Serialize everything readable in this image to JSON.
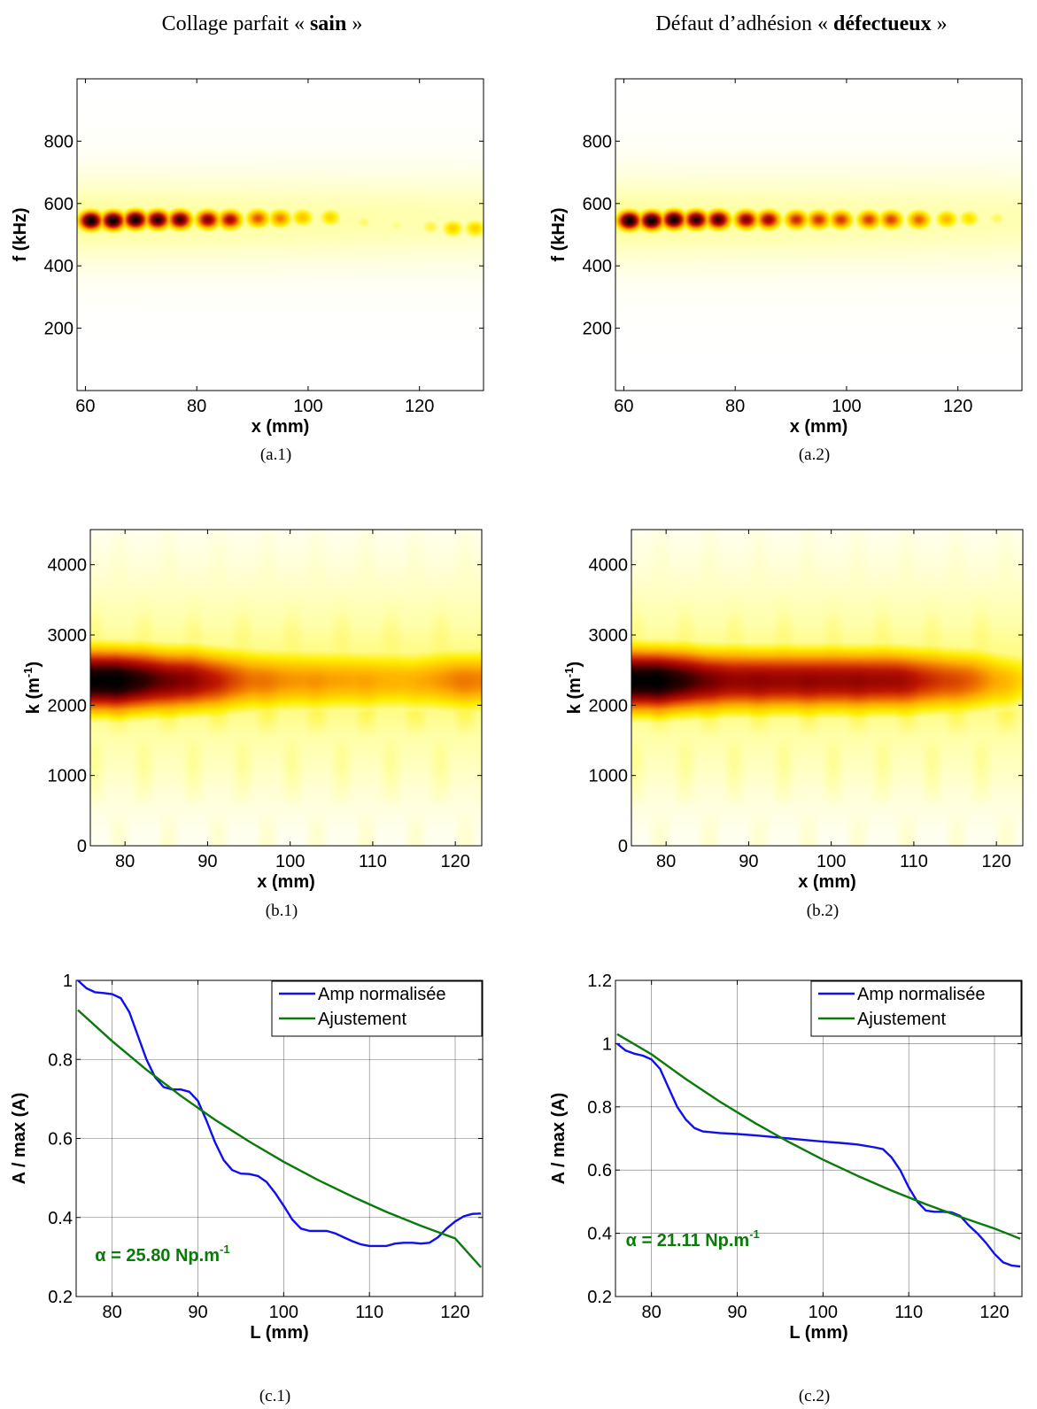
{
  "figure": {
    "column_titles": [
      {
        "prefix": "Collage parfait « ",
        "bold": "sain",
        "suffix": " »"
      },
      {
        "prefix": "Défaut d’adhésion « ",
        "bold": "défectueux",
        "suffix": " »"
      }
    ]
  },
  "colors": {
    "heat": [
      "#ffffff",
      "#ffffaa",
      "#ffee00",
      "#ffb000",
      "#e86000",
      "#c01800",
      "#8a0000",
      "#300000",
      "#000000"
    ],
    "amp_line": "#1010ee",
    "fit_line": "#0a7a0a",
    "alpha_text": "#0a7a0a"
  },
  "chart_data": [
    {
      "id": "a.1",
      "caption": "(a.1)",
      "type": "heatmap",
      "xlabel": "x (mm)",
      "ylabel": "f (kHz)",
      "xlim": [
        58.5,
        131.5
      ],
      "ylim": [
        0,
        1000
      ],
      "xticks": [
        "60",
        "80",
        "100",
        "120"
      ],
      "xtick_values": [
        60,
        80,
        100,
        120
      ],
      "yticks": [
        "200",
        "400",
        "600",
        "800"
      ],
      "ytick_values": [
        200,
        400,
        600,
        800
      ],
      "band": {
        "center": 548,
        "sigma": 30,
        "halo_low": 390,
        "halo_high": 690
      },
      "spots": [
        {
          "x": 61,
          "y": 545,
          "intensity": 0.98
        },
        {
          "x": 65,
          "y": 545,
          "intensity": 0.98
        },
        {
          "x": 69,
          "y": 548,
          "intensity": 0.96
        },
        {
          "x": 73,
          "y": 548,
          "intensity": 0.9
        },
        {
          "x": 77,
          "y": 548,
          "intensity": 0.86
        },
        {
          "x": 82,
          "y": 548,
          "intensity": 0.76
        },
        {
          "x": 86,
          "y": 548,
          "intensity": 0.7
        },
        {
          "x": 91,
          "y": 552,
          "intensity": 0.52
        },
        {
          "x": 95,
          "y": 552,
          "intensity": 0.45
        },
        {
          "x": 99,
          "y": 555,
          "intensity": 0.34
        },
        {
          "x": 104,
          "y": 555,
          "intensity": 0.3
        },
        {
          "x": 110,
          "y": 540,
          "intensity": 0.17
        },
        {
          "x": 116,
          "y": 530,
          "intensity": 0.15
        },
        {
          "x": 122,
          "y": 525,
          "intensity": 0.2
        },
        {
          "x": 126,
          "y": 520,
          "intensity": 0.31
        },
        {
          "x": 130,
          "y": 520,
          "intensity": 0.31
        }
      ]
    },
    {
      "id": "a.2",
      "caption": "(a.2)",
      "type": "heatmap",
      "xlabel": "x (mm)",
      "ylabel": "f (kHz)",
      "xlim": [
        58.5,
        131.5
      ],
      "ylim": [
        0,
        1000
      ],
      "xticks": [
        "60",
        "80",
        "100",
        "120"
      ],
      "xtick_values": [
        60,
        80,
        100,
        120
      ],
      "yticks": [
        "200",
        "400",
        "600",
        "800"
      ],
      "ytick_values": [
        200,
        400,
        600,
        800
      ],
      "band": {
        "center": 548,
        "sigma": 30,
        "halo_low": 390,
        "halo_high": 700
      },
      "spots": [
        {
          "x": 61,
          "y": 545,
          "intensity": 0.98
        },
        {
          "x": 65,
          "y": 545,
          "intensity": 0.98
        },
        {
          "x": 69,
          "y": 548,
          "intensity": 0.96
        },
        {
          "x": 73,
          "y": 548,
          "intensity": 0.9
        },
        {
          "x": 77,
          "y": 548,
          "intensity": 0.86
        },
        {
          "x": 82,
          "y": 548,
          "intensity": 0.76
        },
        {
          "x": 86,
          "y": 548,
          "intensity": 0.72
        },
        {
          "x": 91,
          "y": 548,
          "intensity": 0.6
        },
        {
          "x": 95,
          "y": 548,
          "intensity": 0.58
        },
        {
          "x": 99,
          "y": 548,
          "intensity": 0.57
        },
        {
          "x": 104,
          "y": 548,
          "intensity": 0.56
        },
        {
          "x": 108,
          "y": 548,
          "intensity": 0.55
        },
        {
          "x": 113,
          "y": 548,
          "intensity": 0.5
        },
        {
          "x": 118,
          "y": 550,
          "intensity": 0.36
        },
        {
          "x": 122,
          "y": 552,
          "intensity": 0.28
        },
        {
          "x": 127,
          "y": 552,
          "intensity": 0.18
        },
        {
          "x": 131,
          "y": 552,
          "intensity": 0.12
        }
      ]
    },
    {
      "id": "b.1",
      "caption": "(b.1)",
      "type": "heatmap",
      "xlabel": "x (mm)",
      "ylabel": "k (m",
      "ylabel_sup": "-1",
      "ylabel_end": ")",
      "xlim": [
        75.8,
        123.2
      ],
      "ylim": [
        0,
        4500
      ],
      "xticks": [
        "80",
        "90",
        "100",
        "110",
        "120"
      ],
      "xtick_values": [
        80,
        90,
        100,
        110,
        120
      ],
      "yticks": [
        "0",
        "1000",
        "2000",
        "3000",
        "4000"
      ],
      "ytick_values": [
        0,
        1000,
        2000,
        3000,
        4000
      ],
      "band": {
        "center": 2350,
        "sigma": 430,
        "halo_low": 600,
        "halo_high": 4300
      },
      "profile": [
        {
          "x": 76,
          "v": 1.0
        },
        {
          "x": 79,
          "v": 1.0
        },
        {
          "x": 82,
          "v": 0.9
        },
        {
          "x": 85,
          "v": 0.78
        },
        {
          "x": 88,
          "v": 0.75
        },
        {
          "x": 91,
          "v": 0.62
        },
        {
          "x": 95,
          "v": 0.48
        },
        {
          "x": 100,
          "v": 0.42
        },
        {
          "x": 105,
          "v": 0.4
        },
        {
          "x": 110,
          "v": 0.38
        },
        {
          "x": 115,
          "v": 0.36
        },
        {
          "x": 120,
          "v": 0.45
        },
        {
          "x": 123,
          "v": 0.45
        }
      ]
    },
    {
      "id": "b.2",
      "caption": "(b.2)",
      "type": "heatmap",
      "xlabel": "x (mm)",
      "ylabel": "k (m",
      "ylabel_sup": "-1",
      "ylabel_end": ")",
      "xlim": [
        75.8,
        123.2
      ],
      "ylim": [
        0,
        4500
      ],
      "xticks": [
        "80",
        "90",
        "100",
        "110",
        "120"
      ],
      "xtick_values": [
        80,
        90,
        100,
        110,
        120
      ],
      "yticks": [
        "0",
        "1000",
        "2000",
        "3000",
        "4000"
      ],
      "ytick_values": [
        0,
        1000,
        2000,
        3000,
        4000
      ],
      "band": {
        "center": 2350,
        "sigma": 430,
        "halo_low": 600,
        "halo_high": 4300
      },
      "profile": [
        {
          "x": 76,
          "v": 1.0
        },
        {
          "x": 79,
          "v": 1.0
        },
        {
          "x": 82,
          "v": 0.9
        },
        {
          "x": 85,
          "v": 0.78
        },
        {
          "x": 88,
          "v": 0.73
        },
        {
          "x": 95,
          "v": 0.72
        },
        {
          "x": 100,
          "v": 0.72
        },
        {
          "x": 105,
          "v": 0.71
        },
        {
          "x": 108,
          "v": 0.7
        },
        {
          "x": 111,
          "v": 0.62
        },
        {
          "x": 114,
          "v": 0.55
        },
        {
          "x": 117,
          "v": 0.5
        },
        {
          "x": 120,
          "v": 0.38
        },
        {
          "x": 123,
          "v": 0.3
        }
      ]
    },
    {
      "id": "c.1",
      "caption": "(c.1)",
      "type": "line",
      "xlabel": "L (mm)",
      "ylabel": "A / max (A)",
      "xlim": [
        75.8,
        123.2
      ],
      "ylim": [
        0.2,
        1.0
      ],
      "xticks": [
        "80",
        "90",
        "100",
        "110",
        "120"
      ],
      "xtick_values": [
        80,
        90,
        100,
        110,
        120
      ],
      "yticks": [
        "0.2",
        "0.4",
        "0.6",
        "0.8",
        "1"
      ],
      "ytick_values": [
        0.2,
        0.4,
        0.6,
        0.8,
        1.0
      ],
      "grid": true,
      "legend": "top-right",
      "annotation": {
        "text": "α = 25.80 Np.m",
        "sup": "-1",
        "x": 78,
        "y": 0.29
      },
      "series": [
        {
          "name": "Amp normalisée",
          "color_key": "amp_line",
          "x": [
            76,
            77,
            78,
            79,
            80,
            81,
            82,
            83,
            84,
            85,
            86,
            87,
            88,
            89,
            90,
            91,
            92,
            93,
            94,
            95,
            96,
            97,
            98,
            99,
            100,
            101,
            102,
            103,
            104,
            105,
            106,
            107,
            108,
            109,
            110,
            111,
            112,
            113,
            114,
            115,
            116,
            117,
            118,
            119,
            120,
            121,
            122,
            123
          ],
          "y": [
            1.0,
            0.98,
            0.97,
            0.968,
            0.965,
            0.955,
            0.92,
            0.86,
            0.8,
            0.755,
            0.73,
            0.724,
            0.724,
            0.718,
            0.695,
            0.645,
            0.59,
            0.545,
            0.52,
            0.511,
            0.51,
            0.505,
            0.49,
            0.462,
            0.43,
            0.395,
            0.372,
            0.366,
            0.366,
            0.366,
            0.36,
            0.35,
            0.34,
            0.332,
            0.328,
            0.328,
            0.328,
            0.334,
            0.336,
            0.336,
            0.334,
            0.336,
            0.35,
            0.372,
            0.39,
            0.403,
            0.409,
            0.41
          ]
        },
        {
          "name": "Ajustement",
          "color_key": "fit_line",
          "x": [
            76,
            80,
            84,
            88,
            92,
            96,
            100,
            104,
            108,
            112,
            116,
            120,
            123
          ],
          "y": [
            0.925,
            0.846,
            0.774,
            0.708,
            0.647,
            0.592,
            0.541,
            0.495,
            0.453,
            0.414,
            0.379,
            0.347,
            0.274
          ]
        }
      ]
    },
    {
      "id": "c.2",
      "caption": "(c.2)",
      "type": "line",
      "xlabel": "L (mm)",
      "ylabel": "A / max (A)",
      "xlim": [
        75.8,
        123.2
      ],
      "ylim": [
        0.2,
        1.2
      ],
      "xticks": [
        "80",
        "90",
        "100",
        "110",
        "120"
      ],
      "xtick_values": [
        80,
        90,
        100,
        110,
        120
      ],
      "yticks": [
        "0.2",
        "0.4",
        "0.6",
        "0.8",
        "1",
        "1.2"
      ],
      "ytick_values": [
        0.2,
        0.4,
        0.6,
        0.8,
        1.0,
        1.2
      ],
      "grid": true,
      "legend": "top-right",
      "annotation": {
        "text": "α = 21.11 Np.m",
        "sup": "-1",
        "x": 77,
        "y": 0.36
      },
      "series": [
        {
          "name": "Amp normalisée",
          "color_key": "amp_line",
          "x": [
            76,
            77,
            78,
            79,
            80,
            81,
            82,
            83,
            84,
            85,
            86,
            88,
            90,
            92,
            94,
            96,
            98,
            100,
            102,
            104,
            106,
            107,
            108,
            109,
            110,
            111,
            112,
            113,
            114,
            115,
            116,
            117,
            118,
            119,
            120,
            121,
            122,
            123
          ],
          "y": [
            1.0,
            0.978,
            0.968,
            0.962,
            0.95,
            0.92,
            0.86,
            0.8,
            0.76,
            0.733,
            0.722,
            0.717,
            0.714,
            0.71,
            0.705,
            0.7,
            0.695,
            0.69,
            0.686,
            0.681,
            0.672,
            0.666,
            0.64,
            0.6,
            0.545,
            0.5,
            0.472,
            0.468,
            0.468,
            0.466,
            0.455,
            0.425,
            0.4,
            0.37,
            0.335,
            0.308,
            0.298,
            0.295
          ]
        },
        {
          "name": "Ajustement",
          "color_key": "fit_line",
          "x": [
            76,
            80,
            84,
            88,
            92,
            96,
            100,
            104,
            108,
            112,
            116,
            120,
            123
          ],
          "y": [
            1.03,
            0.966,
            0.888,
            0.816,
            0.75,
            0.689,
            0.633,
            0.582,
            0.535,
            0.492,
            0.452,
            0.415,
            0.383
          ]
        }
      ]
    }
  ]
}
